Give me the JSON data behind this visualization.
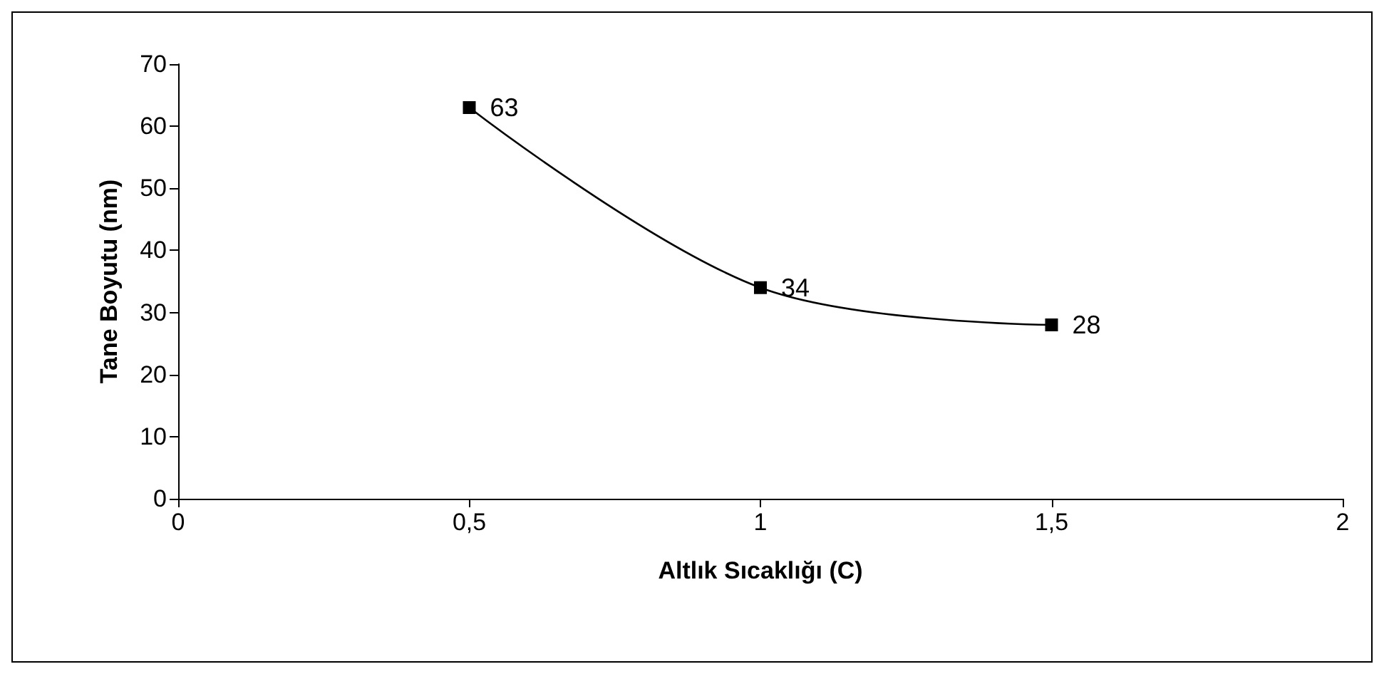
{
  "chart_data": {
    "type": "line",
    "xlabel": "Altlık Sıcaklığı (C)",
    "ylabel": "Tane Boyutu (nm)",
    "x": [
      0.5,
      1,
      1.5
    ],
    "series": [
      {
        "color": "#000000",
        "values": [
          63,
          34,
          28
        ]
      }
    ],
    "xlim": [
      0,
      2
    ],
    "xticks": [
      0,
      {
        "value": 0.5,
        "label": "0,5"
      },
      1,
      {
        "value": 1.5,
        "label": "1,5"
      },
      2
    ],
    "ylim": [
      0,
      70
    ],
    "yticks": [
      0,
      10,
      20,
      30,
      40,
      50,
      60,
      70
    ],
    "grid": false,
    "marker": "square",
    "line_style": "solid",
    "data_labels": true
  }
}
